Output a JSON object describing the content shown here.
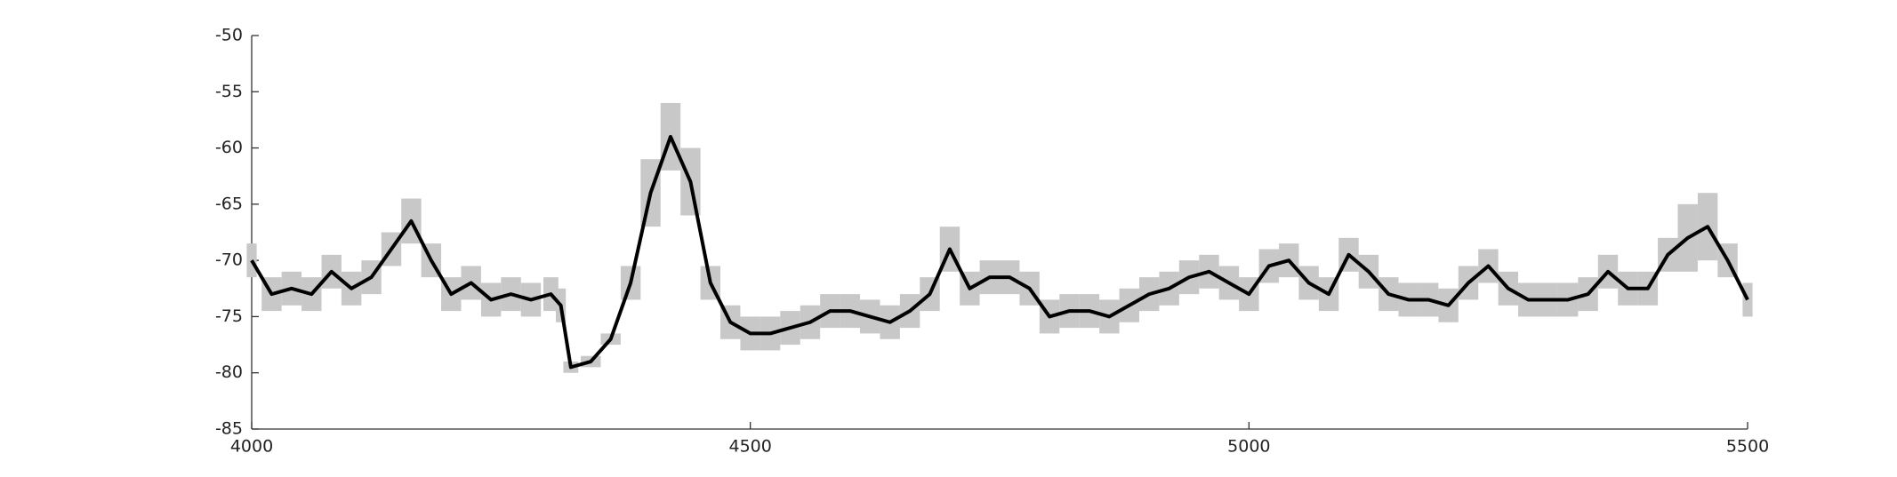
{
  "chart_data": {
    "type": "line",
    "x": [
      4000,
      4020,
      4040,
      4060,
      4080,
      4100,
      4120,
      4140,
      4160,
      4180,
      4200,
      4220,
      4240,
      4260,
      4280,
      4300,
      4310,
      4320,
      4340,
      4360,
      4380,
      4400,
      4420,
      4440,
      4460,
      4480,
      4500,
      4520,
      4540,
      4560,
      4580,
      4600,
      4620,
      4640,
      4660,
      4680,
      4700,
      4720,
      4740,
      4760,
      4780,
      4800,
      4820,
      4840,
      4860,
      4880,
      4900,
      4920,
      4940,
      4960,
      4980,
      5000,
      5020,
      5040,
      5060,
      5080,
      5100,
      5120,
      5140,
      5160,
      5180,
      5200,
      5220,
      5240,
      5260,
      5280,
      5300,
      5320,
      5340,
      5360,
      5380,
      5400,
      5420,
      5440,
      5460,
      5480,
      5500
    ],
    "series": [
      {
        "color": "#000000",
        "values": [
          -70,
          -73,
          -72.5,
          -73,
          -71,
          -72.5,
          -71.5,
          -69,
          -66.5,
          -70,
          -73,
          -72,
          -73.5,
          -73,
          -73.5,
          -73,
          -74,
          -79.5,
          -79,
          -77,
          -72,
          -64,
          -59,
          -63,
          -72,
          -75.5,
          -76.5,
          -76.5,
          -76,
          -75.5,
          -74.5,
          -74.5,
          -75,
          -75.5,
          -74.5,
          -73,
          -69,
          -72.5,
          -71.5,
          -71.5,
          -72.5,
          -75,
          -74.5,
          -74.5,
          -75,
          -74,
          -73,
          -72.5,
          -71.5,
          -71,
          -72,
          -73,
          -70.5,
          -70,
          -72,
          -73,
          -69.5,
          -71,
          -73,
          -73.5,
          -73.5,
          -74,
          -72,
          -70.5,
          -72.5,
          -73.5,
          -73.5,
          -73.5,
          -73,
          -71,
          -72.5,
          -72.5,
          -69.5,
          -68,
          -67,
          -70,
          -73.5
        ]
      }
    ],
    "band": {
      "color": "#c8c8c8",
      "upper": [
        -68.5,
        -71.5,
        -71,
        -71.5,
        -69.5,
        -71,
        -70,
        -67.5,
        -64.5,
        -68.5,
        -71.5,
        -70.5,
        -72,
        -71.5,
        -72,
        -71.5,
        -72.5,
        -79,
        -78.5,
        -76.5,
        -70.5,
        -61,
        -56,
        -60,
        -70.5,
        -74,
        -75,
        -75,
        -74.5,
        -74,
        -73,
        -73,
        -73.5,
        -74,
        -73,
        -71.5,
        -67,
        -71,
        -70,
        -70,
        -71,
        -73.5,
        -73,
        -73,
        -73.5,
        -72.5,
        -71.5,
        -71,
        -70,
        -69.5,
        -70.5,
        -71.5,
        -69,
        -68.5,
        -70.5,
        -71.5,
        -68,
        -69.5,
        -71.5,
        -72,
        -72,
        -72.5,
        -70.5,
        -69,
        -71,
        -72,
        -72,
        -72,
        -71.5,
        -69.5,
        -71,
        -71,
        -68,
        -65,
        -64,
        -68.5,
        -72
      ],
      "lower": [
        -71.5,
        -74.5,
        -74,
        -74.5,
        -72.5,
        -74,
        -73,
        -70.5,
        -68.5,
        -71.5,
        -74.5,
        -73.5,
        -75,
        -74.5,
        -75,
        -74.5,
        -75.5,
        -80,
        -79.5,
        -77.5,
        -73.5,
        -67,
        -62,
        -66,
        -73.5,
        -77,
        -78,
        -78,
        -77.5,
        -77,
        -76,
        -76,
        -76.5,
        -77,
        -76,
        -74.5,
        -71,
        -74,
        -73,
        -73,
        -74,
        -76.5,
        -76,
        -76,
        -76.5,
        -75.5,
        -74.5,
        -74,
        -73,
        -72.5,
        -73.5,
        -74.5,
        -72,
        -71.5,
        -73.5,
        -74.5,
        -71,
        -72.5,
        -74.5,
        -75,
        -75,
        -75.5,
        -73.5,
        -72,
        -74,
        -75,
        -75,
        -75,
        -74.5,
        -72.5,
        -74,
        -74,
        -71,
        -71,
        -70,
        -71.5,
        -75
      ]
    },
    "xlim": [
      4000,
      5500
    ],
    "xticks": [
      4000,
      4500,
      5000,
      5500
    ],
    "ylim": [
      -85,
      -50
    ],
    "yticks": [
      -50,
      -55,
      -60,
      -65,
      -70,
      -75,
      -80,
      -85
    ],
    "grid": false
  }
}
